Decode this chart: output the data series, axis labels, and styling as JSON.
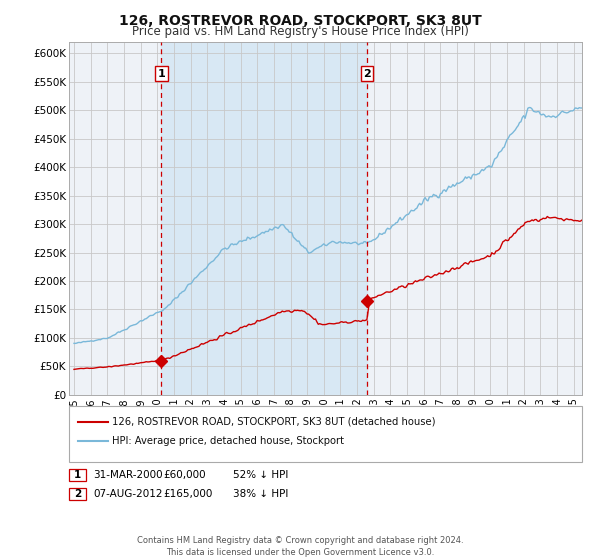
{
  "title1": "126, ROSTREVOR ROAD, STOCKPORT, SK3 8UT",
  "title2": "Price paid vs. HM Land Registry's House Price Index (HPI)",
  "ylim": [
    0,
    620000
  ],
  "yticks": [
    0,
    50000,
    100000,
    150000,
    200000,
    250000,
    300000,
    350000,
    400000,
    450000,
    500000,
    550000,
    600000
  ],
  "ytick_labels": [
    "£0",
    "£50K",
    "£100K",
    "£150K",
    "£200K",
    "£250K",
    "£300K",
    "£350K",
    "£400K",
    "£450K",
    "£500K",
    "£550K",
    "£600K"
  ],
  "xmin": 1994.7,
  "xmax": 2025.5,
  "xticks": [
    1995,
    1996,
    1997,
    1998,
    1999,
    2000,
    2001,
    2002,
    2003,
    2004,
    2005,
    2006,
    2007,
    2008,
    2009,
    2010,
    2011,
    2012,
    2013,
    2014,
    2015,
    2016,
    2017,
    2018,
    2019,
    2020,
    2021,
    2022,
    2023,
    2024,
    2025
  ],
  "hpi_color": "#7ab8d9",
  "property_color": "#cc0000",
  "bg_color": "#ffffff",
  "plot_bg_color": "#eef2f7",
  "shade_color": "#d8e8f4",
  "grid_color": "#c8c8c8",
  "t1": 2000.25,
  "t2": 2012.6,
  "sale1_price": 60000,
  "sale2_price": 165000,
  "label1": "1",
  "label2": "2",
  "date1": "31-MAR-2000",
  "date2": "07-AUG-2012",
  "price1": "£60,000",
  "price2": "£165,000",
  "hpi_note1": "52% ↓ HPI",
  "hpi_note2": "38% ↓ HPI",
  "legend_line1": "126, ROSTREVOR ROAD, STOCKPORT, SK3 8UT (detached house)",
  "legend_line2": "HPI: Average price, detached house, Stockport",
  "footer": "Contains HM Land Registry data © Crown copyright and database right 2024.\nThis data is licensed under the Open Government Licence v3.0."
}
